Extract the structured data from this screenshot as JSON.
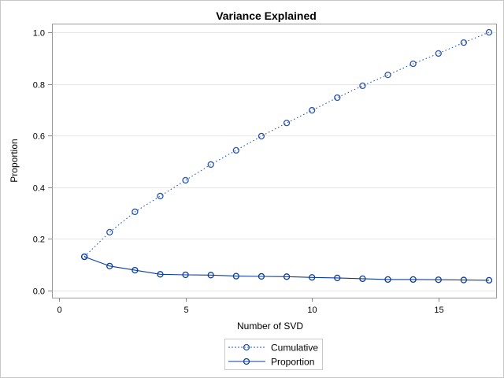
{
  "chart_data": {
    "type": "line",
    "title": "Variance Explained",
    "xlabel": "Number of SVD",
    "ylabel": "Proportion",
    "xlim": [
      0,
      17
    ],
    "ylim": [
      0,
      1.0
    ],
    "xticks": [
      0,
      5,
      10,
      15
    ],
    "xtick_labels": [
      "0",
      "5",
      "10",
      "15"
    ],
    "yticks": [
      0,
      0.2,
      0.4,
      0.6,
      0.8,
      1.0
    ],
    "ytick_labels": [
      "0.0",
      "0.2",
      "0.4",
      "0.6",
      "0.8",
      "1.0"
    ],
    "grid": "horizontal",
    "legend_position": "bottom",
    "x": [
      1,
      2,
      3,
      4,
      5,
      6,
      7,
      8,
      9,
      10,
      11,
      12,
      13,
      14,
      15,
      16,
      17
    ],
    "series": [
      {
        "name": "Cumulative",
        "style": "dotted",
        "color": "#2a55b0",
        "values": [
          0.131,
          0.226,
          0.305,
          0.366,
          0.427,
          0.488,
          0.543,
          0.598,
          0.649,
          0.698,
          0.747,
          0.793,
          0.835,
          0.878,
          0.918,
          0.96,
          1.0
        ]
      },
      {
        "name": "Proportion",
        "style": "solid",
        "color": "#0b3d9c",
        "values": [
          0.131,
          0.095,
          0.079,
          0.063,
          0.061,
          0.06,
          0.056,
          0.055,
          0.054,
          0.051,
          0.049,
          0.046,
          0.043,
          0.043,
          0.042,
          0.041,
          0.04
        ]
      }
    ]
  }
}
